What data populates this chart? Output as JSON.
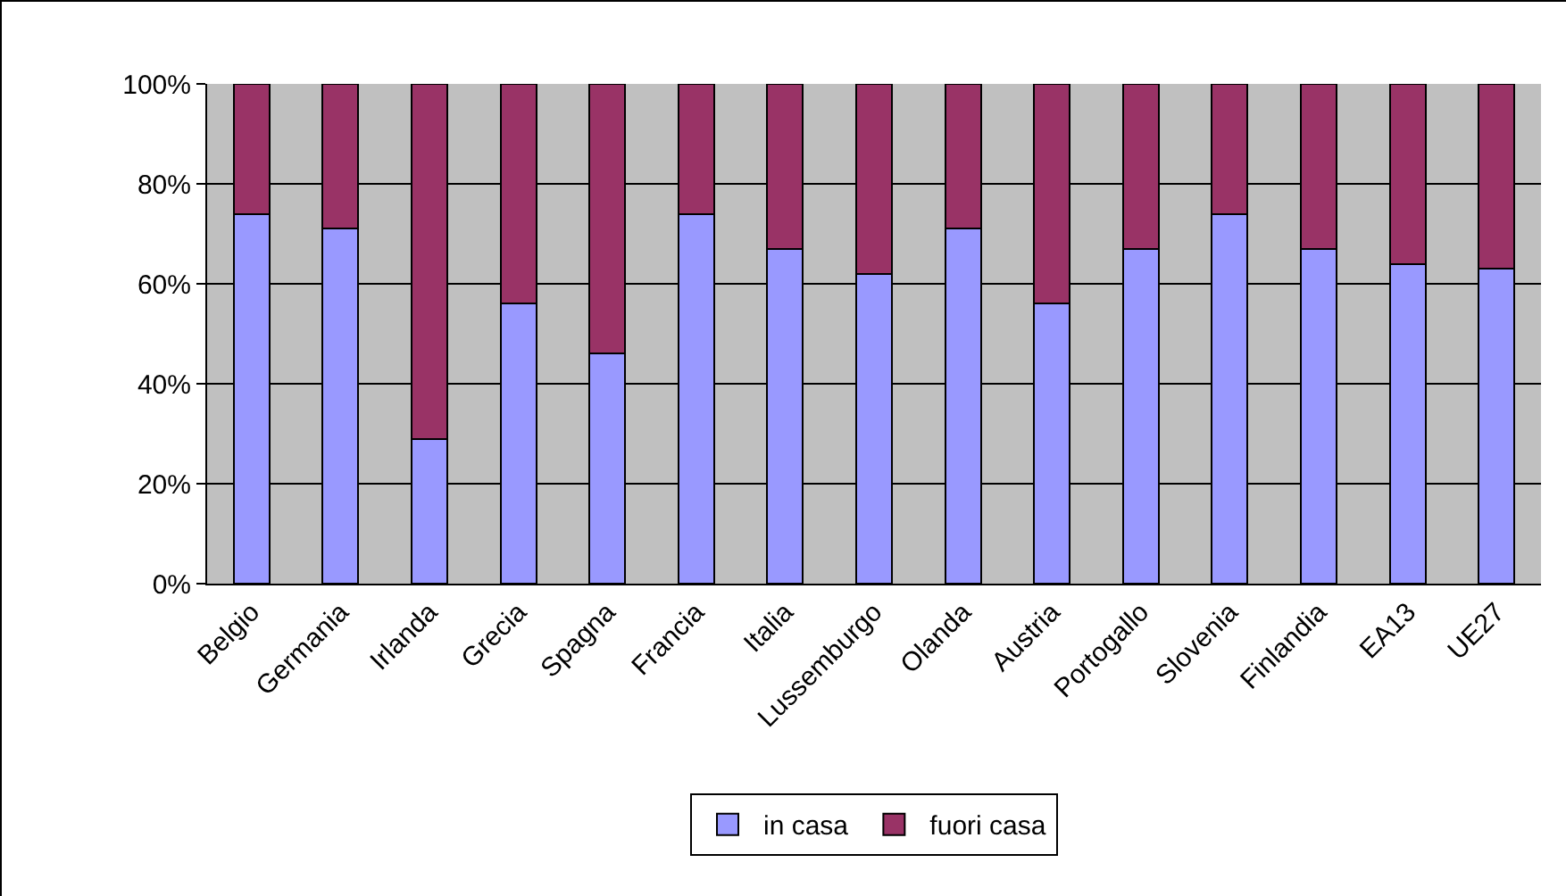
{
  "chart_data": {
    "type": "bar",
    "stacked": true,
    "categories": [
      "Belgio",
      "Germania",
      "Irlanda",
      "Grecia",
      "Spagna",
      "Francia",
      "Italia",
      "Lussemburgo",
      "Olanda",
      "Austria",
      "Portogallo",
      "Slovenia",
      "Finlandia",
      "EA13",
      "UE27"
    ],
    "series": [
      {
        "name": "in casa",
        "color": "#9999ff",
        "values": [
          74,
          71,
          29,
          56,
          46,
          74,
          67,
          62,
          71,
          56,
          67,
          74,
          67,
          64,
          63
        ]
      },
      {
        "name": "fuori casa",
        "color": "#993366",
        "values": [
          26,
          29,
          71,
          44,
          54,
          26,
          33,
          38,
          29,
          44,
          33,
          26,
          33,
          36,
          37
        ]
      }
    ],
    "ylim": [
      0,
      100
    ],
    "yticks": [
      {
        "value": 0,
        "label": "0%"
      },
      {
        "value": 20,
        "label": "20%"
      },
      {
        "value": 40,
        "label": "40%"
      },
      {
        "value": 60,
        "label": "60%"
      },
      {
        "value": 80,
        "label": "80%"
      },
      {
        "value": 100,
        "label": "100%"
      }
    ],
    "grid": "y",
    "legend": "bottom"
  }
}
